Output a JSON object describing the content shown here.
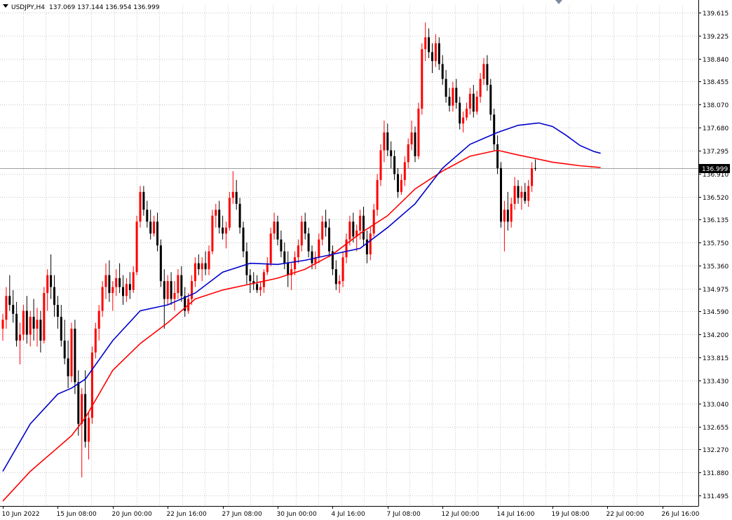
{
  "header": {
    "symbol_label": "USDJPY,H4",
    "ohlc_text": "137.069 137.144 136.954 136.999"
  },
  "current_price": {
    "value": 136.999,
    "label": "136.999"
  },
  "colors": {
    "bull_candle": "#ff0000",
    "bear_candle": "#000000",
    "ma_fast": "#0000cc",
    "ma_slow": "#ff0000",
    "grid": "#c8c8c8",
    "axis": "#000000",
    "price_label_bg": "#000000",
    "price_line": "#a0a0a0"
  },
  "chart_data": {
    "type": "candlestick",
    "symbol": "USDJPY",
    "timeframe": "H4",
    "grid": true,
    "y_axis_position": "right",
    "ylim": [
      131.3,
      139.9
    ],
    "y_ticks": [
      "139.615",
      "139.225",
      "138.840",
      "138.455",
      "138.070",
      "137.680",
      "137.295",
      "136.910",
      "136.520",
      "136.135",
      "135.750",
      "135.360",
      "134.975",
      "134.590",
      "134.200",
      "133.815",
      "133.430",
      "133.040",
      "132.655",
      "132.270",
      "131.880",
      "131.495"
    ],
    "x_tick_labels": [
      "10 Jun 2022",
      "15 Jun 08:00",
      "20 Jun 00:00",
      "22 Jun 16:00",
      "27 Jun 08:00",
      "30 Jun 00:00",
      "4 Jul 16:00",
      "7 Jul 08:00",
      "12 Jul 00:00",
      "14 Jul 16:00",
      "19 Jul 08:00",
      "22 Jul 00:00",
      "26 Jul 16:00"
    ],
    "x_tick_index": [
      0,
      16,
      32,
      48,
      64,
      80,
      96,
      112,
      128,
      144,
      160,
      176,
      192
    ],
    "candles": [
      [
        134.3,
        134.55,
        134.1,
        134.45
      ],
      [
        134.45,
        135.0,
        134.3,
        134.85
      ],
      [
        134.85,
        135.2,
        134.6,
        134.7
      ],
      [
        134.7,
        134.95,
        134.4,
        134.55
      ],
      [
        134.55,
        134.75,
        134.0,
        134.1
      ],
      [
        134.1,
        134.4,
        133.7,
        134.2
      ],
      [
        134.2,
        134.7,
        134.1,
        134.6
      ],
      [
        134.6,
        134.85,
        134.05,
        134.2
      ],
      [
        134.2,
        134.6,
        134.0,
        134.5
      ],
      [
        134.5,
        134.8,
        134.1,
        134.3
      ],
      [
        134.3,
        134.65,
        134.0,
        134.45
      ],
      [
        134.45,
        134.6,
        133.9,
        134.1
      ],
      [
        134.1,
        135.0,
        134.05,
        134.9
      ],
      [
        134.9,
        135.3,
        134.6,
        135.2
      ],
      [
        135.2,
        135.55,
        134.8,
        135.0
      ],
      [
        135.0,
        135.2,
        134.5,
        134.7
      ],
      [
        134.7,
        134.85,
        134.3,
        134.5
      ],
      [
        134.5,
        134.7,
        134.0,
        134.1
      ],
      [
        134.1,
        134.45,
        133.7,
        133.8
      ],
      [
        133.8,
        134.1,
        133.3,
        133.5
      ],
      [
        133.5,
        134.4,
        133.4,
        134.3
      ],
      [
        134.3,
        134.45,
        133.2,
        133.4
      ],
      [
        133.4,
        133.6,
        132.5,
        132.7
      ],
      [
        132.7,
        133.3,
        131.8,
        133.2
      ],
      [
        133.2,
        133.6,
        132.3,
        132.4
      ],
      [
        132.4,
        132.9,
        132.1,
        132.8
      ],
      [
        132.8,
        134.0,
        132.7,
        133.9
      ],
      [
        133.9,
        134.4,
        133.8,
        134.3
      ],
      [
        134.3,
        134.7,
        134.1,
        134.6
      ],
      [
        134.6,
        135.1,
        134.5,
        135.0
      ],
      [
        135.0,
        135.4,
        134.8,
        135.2
      ],
      [
        135.2,
        135.45,
        134.75,
        134.9
      ],
      [
        134.9,
        135.1,
        134.6,
        135.0
      ],
      [
        135.0,
        135.3,
        134.85,
        135.15
      ],
      [
        135.15,
        135.4,
        134.9,
        135.0
      ],
      [
        135.0,
        135.2,
        134.7,
        134.85
      ],
      [
        134.85,
        135.15,
        134.75,
        135.05
      ],
      [
        135.05,
        135.25,
        134.8,
        134.95
      ],
      [
        134.95,
        135.35,
        134.9,
        135.25
      ],
      [
        135.25,
        136.2,
        135.2,
        136.1
      ],
      [
        136.1,
        136.7,
        136.0,
        136.6
      ],
      [
        136.6,
        136.7,
        136.2,
        136.3
      ],
      [
        136.3,
        136.45,
        136.0,
        136.1
      ],
      [
        136.1,
        136.3,
        135.8,
        135.9
      ],
      [
        135.9,
        136.2,
        135.85,
        136.1
      ],
      [
        136.1,
        136.25,
        135.6,
        135.7
      ],
      [
        135.7,
        135.8,
        135.0,
        135.1
      ],
      [
        135.1,
        135.3,
        134.3,
        134.8
      ],
      [
        134.8,
        135.2,
        134.7,
        135.1
      ],
      [
        135.1,
        135.25,
        134.7,
        134.8
      ],
      [
        134.8,
        135.1,
        134.6,
        134.9
      ],
      [
        134.9,
        135.3,
        134.8,
        135.2
      ],
      [
        135.2,
        135.35,
        134.75,
        134.85
      ],
      [
        134.85,
        135.0,
        134.5,
        134.6
      ],
      [
        134.6,
        134.9,
        134.55,
        134.8
      ],
      [
        134.8,
        135.2,
        134.7,
        135.1
      ],
      [
        135.1,
        135.5,
        135.0,
        135.4
      ],
      [
        135.4,
        135.55,
        135.2,
        135.3
      ],
      [
        135.3,
        135.5,
        135.1,
        135.4
      ],
      [
        135.4,
        135.6,
        135.2,
        135.3
      ],
      [
        135.3,
        135.7,
        135.2,
        135.6
      ],
      [
        135.6,
        136.3,
        135.55,
        136.2
      ],
      [
        136.2,
        136.4,
        136.0,
        136.3
      ],
      [
        136.3,
        136.45,
        135.9,
        136.0
      ],
      [
        136.0,
        136.2,
        135.8,
        135.9
      ],
      [
        135.9,
        136.1,
        135.65,
        136.0
      ],
      [
        136.0,
        136.6,
        135.95,
        136.5
      ],
      [
        136.5,
        136.95,
        136.4,
        136.6
      ],
      [
        136.6,
        136.8,
        136.3,
        136.4
      ],
      [
        136.4,
        136.5,
        135.9,
        136.0
      ],
      [
        136.0,
        136.1,
        135.5,
        135.6
      ],
      [
        135.6,
        135.75,
        135.05,
        135.2
      ],
      [
        135.2,
        135.3,
        134.9,
        135.1
      ],
      [
        135.1,
        135.25,
        134.95,
        135.05
      ],
      [
        135.05,
        135.2,
        134.9,
        134.95
      ],
      [
        134.95,
        135.1,
        134.85,
        135.0
      ],
      [
        135.0,
        135.3,
        134.9,
        135.25
      ],
      [
        135.25,
        135.5,
        135.2,
        135.4
      ],
      [
        135.4,
        136.0,
        135.35,
        135.9
      ],
      [
        135.9,
        136.25,
        135.8,
        136.1
      ],
      [
        136.1,
        136.2,
        135.7,
        135.8
      ],
      [
        135.8,
        135.95,
        135.5,
        135.6
      ],
      [
        135.6,
        135.75,
        135.3,
        135.4
      ],
      [
        135.4,
        135.6,
        135.0,
        135.2
      ],
      [
        135.2,
        135.4,
        134.95,
        135.3
      ],
      [
        135.3,
        135.6,
        135.2,
        135.5
      ],
      [
        135.5,
        135.8,
        135.4,
        135.7
      ],
      [
        135.7,
        136.2,
        135.6,
        136.1
      ],
      [
        136.1,
        136.25,
        135.8,
        135.9
      ],
      [
        135.9,
        136.0,
        135.5,
        135.6
      ],
      [
        135.6,
        135.7,
        135.3,
        135.4
      ],
      [
        135.4,
        135.6,
        135.3,
        135.5
      ],
      [
        135.5,
        135.9,
        135.4,
        135.8
      ],
      [
        135.8,
        136.2,
        135.7,
        136.1
      ],
      [
        136.1,
        136.3,
        135.85,
        136.0
      ],
      [
        136.0,
        136.15,
        135.5,
        135.6
      ],
      [
        135.6,
        135.7,
        135.2,
        135.3
      ],
      [
        135.3,
        135.45,
        134.95,
        135.05
      ],
      [
        135.05,
        135.2,
        134.9,
        135.1
      ],
      [
        135.1,
        135.6,
        135.0,
        135.5
      ],
      [
        135.5,
        135.9,
        135.4,
        135.8
      ],
      [
        135.8,
        136.2,
        135.7,
        136.1
      ],
      [
        136.1,
        136.25,
        135.75,
        135.85
      ],
      [
        135.85,
        136.05,
        135.6,
        135.95
      ],
      [
        135.95,
        136.3,
        135.8,
        136.2
      ],
      [
        136.2,
        136.35,
        135.7,
        135.8
      ],
      [
        135.8,
        135.95,
        135.4,
        135.55
      ],
      [
        135.55,
        136.0,
        135.45,
        135.9
      ],
      [
        135.9,
        136.4,
        135.85,
        136.3
      ],
      [
        136.3,
        136.9,
        136.2,
        136.8
      ],
      [
        136.8,
        137.4,
        136.7,
        137.3
      ],
      [
        137.3,
        137.8,
        137.1,
        137.6
      ],
      [
        137.6,
        137.75,
        137.2,
        137.3
      ],
      [
        137.3,
        137.45,
        137.0,
        137.2
      ],
      [
        137.2,
        137.3,
        136.8,
        136.9
      ],
      [
        136.9,
        137.0,
        136.5,
        136.6
      ],
      [
        136.6,
        136.9,
        136.55,
        136.8
      ],
      [
        136.8,
        137.2,
        136.7,
        137.1
      ],
      [
        137.1,
        137.5,
        137.0,
        137.4
      ],
      [
        137.4,
        137.8,
        137.3,
        137.6
      ],
      [
        137.6,
        137.7,
        137.1,
        137.2
      ],
      [
        137.2,
        138.1,
        137.15,
        138.0
      ],
      [
        138.0,
        139.1,
        137.9,
        139.0
      ],
      [
        139.0,
        139.45,
        138.8,
        139.2
      ],
      [
        139.2,
        139.35,
        138.85,
        138.95
      ],
      [
        138.95,
        139.1,
        138.6,
        138.8
      ],
      [
        138.8,
        139.25,
        138.7,
        139.1
      ],
      [
        139.1,
        139.2,
        138.65,
        138.75
      ],
      [
        138.75,
        138.9,
        138.4,
        138.5
      ],
      [
        138.5,
        138.65,
        138.1,
        138.2
      ],
      [
        138.2,
        138.35,
        137.95,
        138.05
      ],
      [
        138.05,
        138.45,
        137.95,
        138.35
      ],
      [
        138.35,
        138.5,
        138.0,
        138.1
      ],
      [
        138.1,
        138.2,
        137.65,
        137.75
      ],
      [
        137.75,
        137.95,
        137.6,
        137.85
      ],
      [
        137.85,
        138.1,
        137.8,
        138.0
      ],
      [
        138.0,
        138.35,
        137.9,
        138.25
      ],
      [
        138.25,
        138.4,
        137.85,
        137.95
      ],
      [
        137.95,
        138.3,
        137.9,
        138.2
      ],
      [
        138.2,
        138.6,
        138.1,
        138.5
      ],
      [
        138.5,
        138.85,
        138.4,
        138.75
      ],
      [
        138.75,
        138.9,
        138.3,
        138.4
      ],
      [
        138.4,
        138.5,
        137.8,
        137.9
      ],
      [
        137.9,
        138.0,
        137.3,
        137.4
      ],
      [
        137.4,
        137.55,
        136.9,
        137.0
      ],
      [
        137.0,
        137.1,
        136.0,
        136.1
      ],
      [
        136.1,
        136.45,
        135.6,
        136.3
      ],
      [
        136.3,
        136.6,
        135.95,
        136.1
      ],
      [
        136.1,
        136.5,
        136.0,
        136.4
      ],
      [
        136.4,
        136.85,
        136.3,
        136.7
      ],
      [
        136.7,
        136.8,
        136.4,
        136.5
      ],
      [
        136.5,
        136.7,
        136.3,
        136.6
      ],
      [
        136.6,
        136.75,
        136.4,
        136.45
      ],
      [
        136.45,
        136.8,
        136.35,
        136.7
      ],
      [
        136.7,
        137.1,
        136.6,
        137.0
      ],
      [
        137.0,
        137.144,
        136.954,
        136.999
      ]
    ],
    "ma_fast": [
      [
        0,
        131.9
      ],
      [
        8,
        132.7
      ],
      [
        16,
        133.2
      ],
      [
        20,
        133.3
      ],
      [
        24,
        133.45
      ],
      [
        32,
        134.1
      ],
      [
        40,
        134.6
      ],
      [
        48,
        134.7
      ],
      [
        56,
        134.9
      ],
      [
        64,
        135.25
      ],
      [
        72,
        135.4
      ],
      [
        80,
        135.38
      ],
      [
        88,
        135.45
      ],
      [
        96,
        135.55
      ],
      [
        104,
        135.65
      ],
      [
        112,
        136.0
      ],
      [
        120,
        136.4
      ],
      [
        128,
        137.0
      ],
      [
        136,
        137.4
      ],
      [
        144,
        137.6
      ],
      [
        150,
        137.72
      ],
      [
        156,
        137.76
      ],
      [
        160,
        137.7
      ],
      [
        164,
        137.55
      ],
      [
        168,
        137.38
      ],
      [
        172,
        137.28
      ],
      [
        174,
        137.25
      ]
    ],
    "ma_slow": [
      [
        0,
        131.4
      ],
      [
        8,
        131.9
      ],
      [
        16,
        132.3
      ],
      [
        20,
        132.5
      ],
      [
        24,
        132.8
      ],
      [
        32,
        133.6
      ],
      [
        40,
        134.05
      ],
      [
        48,
        134.4
      ],
      [
        56,
        134.8
      ],
      [
        64,
        134.95
      ],
      [
        72,
        135.05
      ],
      [
        80,
        135.15
      ],
      [
        88,
        135.3
      ],
      [
        96,
        135.55
      ],
      [
        104,
        135.9
      ],
      [
        112,
        136.2
      ],
      [
        120,
        136.65
      ],
      [
        128,
        136.95
      ],
      [
        136,
        137.2
      ],
      [
        144,
        137.3
      ],
      [
        150,
        137.22
      ],
      [
        156,
        137.15
      ],
      [
        160,
        137.1
      ],
      [
        164,
        137.07
      ],
      [
        168,
        137.04
      ],
      [
        172,
        137.02
      ],
      [
        174,
        137.01
      ]
    ]
  }
}
